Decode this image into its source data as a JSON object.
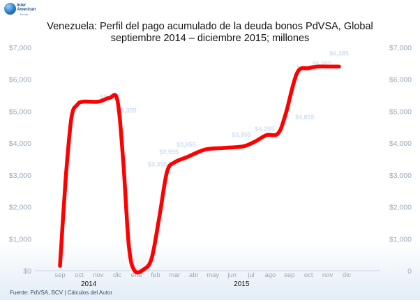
{
  "logo": {
    "text_line1": "Inter",
    "text_line2": "American",
    "text_line3": "Trends"
  },
  "title_line1": "Venezuela: Perfil del pago acumulado de la deuda bonos PdVSA, Global",
  "title_line2": "septiembre 2014 – diciembre 2015; millones",
  "footer": "Fuente: PdVSA, BCV  |  Cálculos del Autor",
  "colors": {
    "series": "#ff0000",
    "tick_text": "#9aa8b8",
    "axis": "#c7d0da",
    "year_text": "#111111",
    "faded_label": "#cfe0f2"
  },
  "chart_data": {
    "type": "line",
    "title": "Venezuela: Perfil del pago acumulado de la deuda bonos PdVSA, Global septiembre 2014 – diciembre 2015; millones",
    "xlabel": "",
    "ylabel": "",
    "x_ticks": [
      "sep",
      "oct",
      "nov",
      "dic",
      "ene",
      "feb",
      "mar",
      "abr",
      "may",
      "jun",
      "jul",
      "ago",
      "sep",
      "oct",
      "nov",
      "dic"
    ],
    "year_labels": [
      {
        "label": "2014",
        "tick_index": 1.5
      },
      {
        "label": "2015",
        "tick_index": 9.5
      }
    ],
    "y_tick_labels_left": [
      "$0",
      "$1,000",
      "$2,000",
      "$3,000",
      "$4,000",
      "$5,000",
      "$6,000",
      "$7,000"
    ],
    "y_tick_labels_right": [
      "0",
      "$1,000",
      "$2,000",
      "$3,000",
      "$4,000",
      "$5,000",
      "$6,000",
      "$7,000"
    ],
    "ylim": [
      0,
      7000
    ],
    "grid": false,
    "legend": "none",
    "series": [
      {
        "smooth": true,
        "points": [
          [
            0,
            150
          ],
          [
            0.3,
            2900
          ],
          [
            0.6,
            4800
          ],
          [
            0.9,
            5200
          ],
          [
            1.2,
            5300
          ],
          [
            2.0,
            5300
          ],
          [
            2.6,
            5420
          ],
          [
            3.0,
            5350
          ],
          [
            3.3,
            3500
          ],
          [
            3.6,
            800
          ],
          [
            3.9,
            0
          ],
          [
            4.4,
            50
          ],
          [
            4.8,
            400
          ],
          [
            5.2,
            1700
          ],
          [
            5.6,
            3100
          ],
          [
            6.0,
            3400
          ],
          [
            6.6,
            3550
          ],
          [
            7.6,
            3800
          ],
          [
            8.6,
            3850
          ],
          [
            9.6,
            3900
          ],
          [
            10.2,
            4050
          ],
          [
            10.8,
            4250
          ],
          [
            11.4,
            4300
          ],
          [
            11.8,
            4900
          ],
          [
            12.4,
            6200
          ],
          [
            13.0,
            6350
          ],
          [
            13.5,
            6400
          ],
          [
            14.0,
            6400
          ],
          [
            14.6,
            6400
          ]
        ]
      }
    ],
    "faded_data_labels": [
      {
        "x": 2.6,
        "y": 5380,
        "label": "$5,355"
      },
      {
        "x": 3.5,
        "y": 4950,
        "label": "$5,355"
      },
      {
        "x": 5.1,
        "y": 3270,
        "label": "$3,355"
      },
      {
        "x": 5.7,
        "y": 3650,
        "label": "$3,555"
      },
      {
        "x": 6.6,
        "y": 3880,
        "label": "$3,855"
      },
      {
        "x": 9.5,
        "y": 4200,
        "label": "$3,955"
      },
      {
        "x": 10.7,
        "y": 4380,
        "label": "$4,255"
      },
      {
        "x": 12.8,
        "y": 4750,
        "label": "$4,855"
      },
      {
        "x": 12.9,
        "y": 6280,
        "label": "$6,255"
      },
      {
        "x": 13.7,
        "y": 6420,
        "label": "$6,355"
      },
      {
        "x": 14.6,
        "y": 6750,
        "label": "$6,385"
      }
    ]
  }
}
